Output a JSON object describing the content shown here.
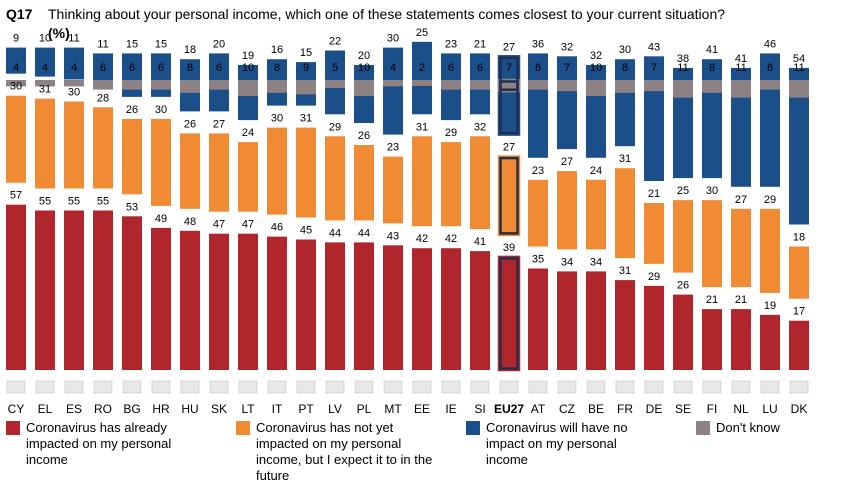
{
  "header": {
    "label": "Q17",
    "title": "Thinking about your personal income, which one of these statements comes closest to your current situation?",
    "unit": "(%)"
  },
  "chart_data": {
    "type": "bar",
    "stacked": true,
    "categories": [
      "CY",
      "EL",
      "ES",
      "RO",
      "BG",
      "HR",
      "HU",
      "SK",
      "LT",
      "IT",
      "PT",
      "LV",
      "PL",
      "MT",
      "EE",
      "IE",
      "SI",
      "EU27",
      "AT",
      "CZ",
      "BE",
      "FR",
      "DE",
      "SE",
      "FI",
      "NL",
      "LU",
      "DK"
    ],
    "highlight": "EU27",
    "ylim": [
      0,
      100
    ],
    "series": [
      {
        "name": "Coronavirus has already impacted on my personal income",
        "color": "#B0262C",
        "values": [
          57,
          55,
          55,
          55,
          53,
          49,
          48,
          47,
          47,
          46,
          45,
          44,
          44,
          43,
          42,
          42,
          41,
          39,
          35,
          34,
          34,
          31,
          29,
          26,
          21,
          21,
          19,
          17
        ]
      },
      {
        "name": "Coronavirus has not yet impacted on my personal income, but I expect it to in the future",
        "color": "#F08A33",
        "values": [
          30,
          31,
          30,
          28,
          26,
          30,
          26,
          27,
          24,
          30,
          31,
          29,
          26,
          23,
          31,
          29,
          32,
          27,
          23,
          27,
          24,
          31,
          21,
          25,
          30,
          27,
          29,
          18
        ]
      },
      {
        "name": "Coronavirus will have no impact on my personal income",
        "color": "#1B4F8A",
        "values": [
          9,
          10,
          11,
          11,
          15,
          15,
          18,
          20,
          19,
          16,
          15,
          22,
          20,
          30,
          25,
          23,
          21,
          27,
          36,
          32,
          32,
          30,
          43,
          38,
          41,
          41,
          46,
          54
        ]
      },
      {
        "name": "Don't know",
        "color": "#8D8183",
        "values": [
          4,
          4,
          4,
          6,
          6,
          6,
          8,
          6,
          10,
          8,
          9,
          5,
          10,
          4,
          2,
          6,
          6,
          7,
          6,
          7,
          10,
          8,
          7,
          11,
          8,
          11,
          6,
          11
        ]
      }
    ]
  },
  "legend": [
    {
      "label": "Coronavirus has already impacted on my personal income",
      "color": "#B0262C"
    },
    {
      "label": "Coronavirus has not yet impacted on my personal income, but I expect it to in the future",
      "color": "#F08A33"
    },
    {
      "label": "Coronavirus will have no impact on my personal income",
      "color": "#1B4F8A"
    },
    {
      "label": "Don't know",
      "color": "#8D8183"
    }
  ],
  "flags": [
    "cy-flag-icon",
    "gr-flag-icon",
    "es-flag-icon",
    "ro-flag-icon",
    "bg-flag-icon",
    "hr-flag-icon",
    "hu-flag-icon",
    "sk-flag-icon",
    "lt-flag-icon",
    "it-flag-icon",
    "pt-flag-icon",
    "lv-flag-icon",
    "pl-flag-icon",
    "mt-flag-icon",
    "ee-flag-icon",
    "ie-flag-icon",
    "si-flag-icon",
    "eu-flag-icon",
    "at-flag-icon",
    "cz-flag-icon",
    "be-flag-icon",
    "fr-flag-icon",
    "de-flag-icon",
    "se-flag-icon",
    "fi-flag-icon",
    "nl-flag-icon",
    "lu-flag-icon",
    "dk-flag-icon"
  ]
}
